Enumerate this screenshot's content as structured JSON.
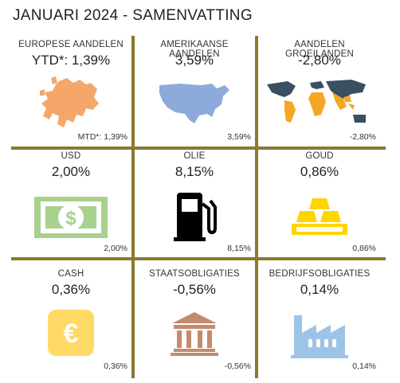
{
  "title": "JANUARI 2024 - SAMENVATTING",
  "cells": [
    {
      "label": "EUROPESE AANDELEN",
      "value": "YTD*: 1,39%",
      "foot": "MTD*: 1,39%",
      "icon": "europe-map-icon",
      "color": "#f5a76b"
    },
    {
      "label": "AMERIKAANSE AANDELEN",
      "value": "3,59%",
      "foot": "3,59%",
      "icon": "usa-map-icon",
      "color": "#8eaadb"
    },
    {
      "label": "AANDELEN GROEILANDEN",
      "value": "-2,80%",
      "foot": "-2,80%",
      "icon": "world-map-icon",
      "color": "#f5a623"
    },
    {
      "label": "USD",
      "value": "2,00%",
      "foot": "2,00%",
      "icon": "dollar-bill-icon",
      "color": "#a9d18e"
    },
    {
      "label": "OLIE",
      "value": "8,15%",
      "foot": "8,15%",
      "icon": "fuel-pump-icon",
      "color": "#000000"
    },
    {
      "label": "GOUD",
      "value": "0,86%",
      "foot": "0,86%",
      "icon": "gold-bars-icon",
      "color": "#ffd500"
    },
    {
      "label": "CASH",
      "value": "0,36%",
      "foot": "0,36%",
      "icon": "euro-coin-icon",
      "color": "#ffd966"
    },
    {
      "label": "STAATSOBLIGATIES",
      "value": "-0,56%",
      "foot": "-0,56%",
      "icon": "government-building-icon",
      "color": "#c38b6d"
    },
    {
      "label": "BEDRIJFSOBLIGATIES",
      "value": "0,14%",
      "foot": "0,14%",
      "icon": "factory-icon",
      "color": "#9dc3e6"
    }
  ]
}
